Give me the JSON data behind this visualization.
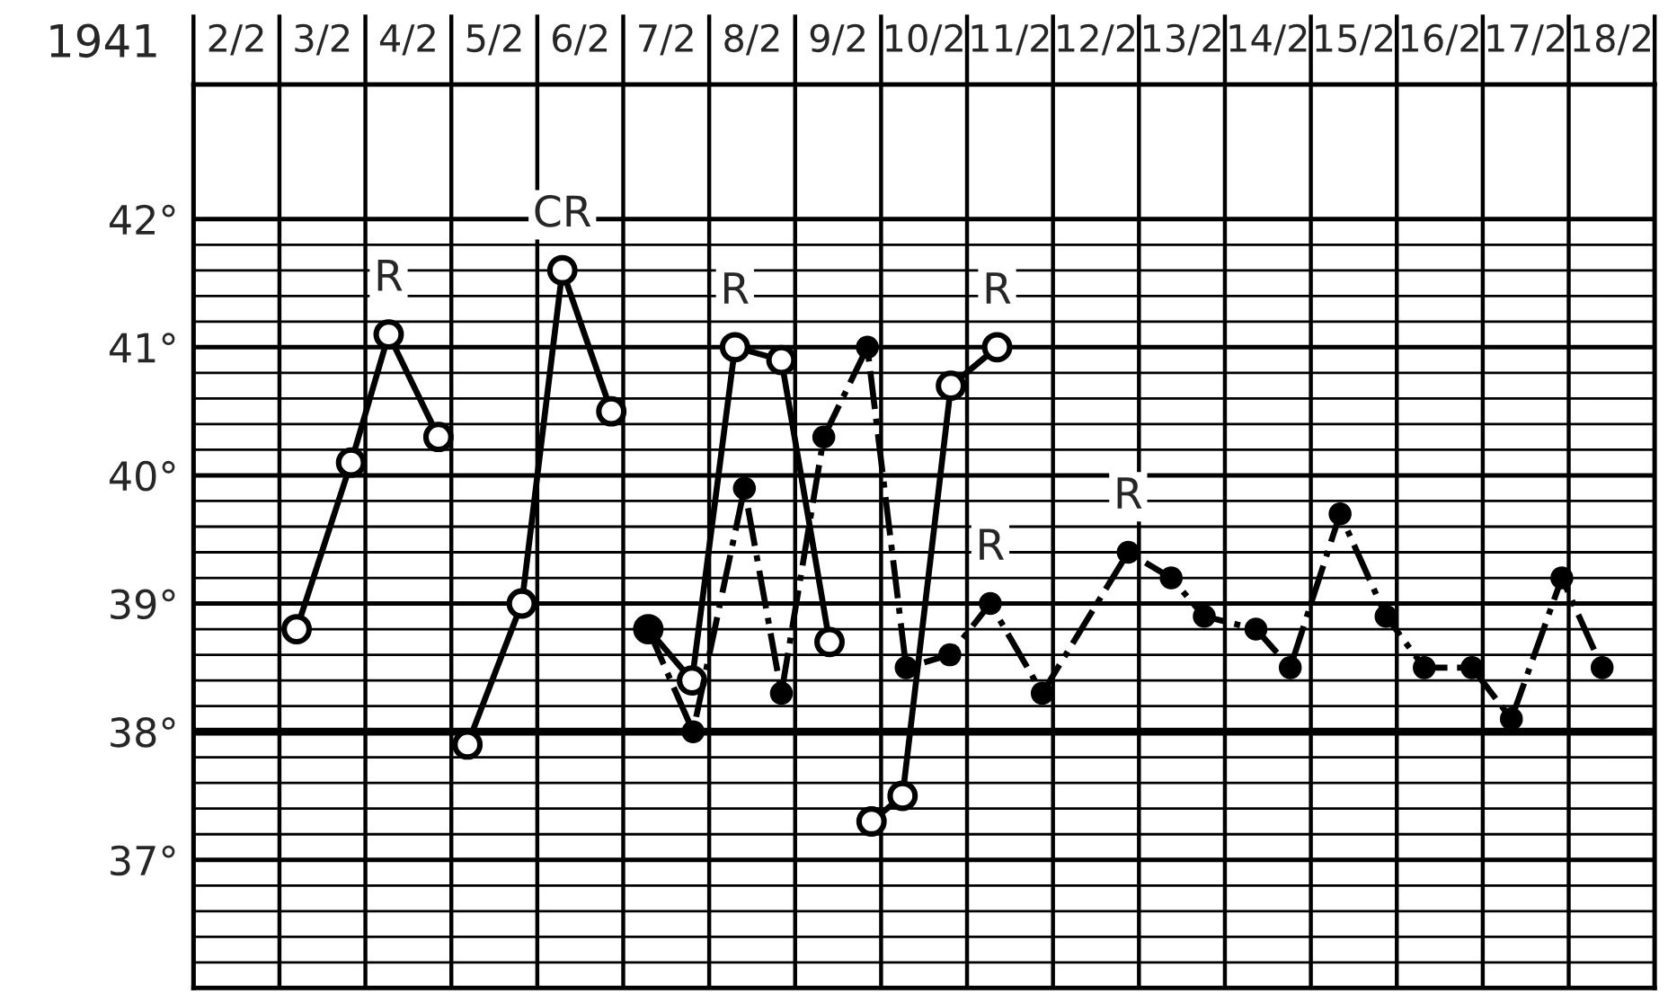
{
  "chart_data": {
    "type": "line",
    "xlabel": "1941",
    "xlim": [
      "1941-02-02",
      "1941-02-19"
    ],
    "xticks": [
      {
        "value": "1941-02-02",
        "label": null
      },
      {
        "value": "1941-02-02T12:00",
        "label": "2/2"
      },
      {
        "value": "1941-02-03",
        "label": null
      },
      {
        "value": "1941-02-03T12:00",
        "label": "3/2"
      },
      {
        "value": "1941-02-04",
        "label": null
      },
      {
        "value": "1941-02-04T12:00",
        "label": "4/2"
      },
      {
        "value": "1941-02-05",
        "label": null
      },
      {
        "value": "1941-02-05T12:00",
        "label": "5/2"
      },
      {
        "value": "1941-02-06",
        "label": null
      },
      {
        "value": "1941-02-06T12:00",
        "label": "6/2"
      },
      {
        "value": "1941-02-07",
        "label": null
      },
      {
        "value": "1941-02-07T12:00",
        "label": "7/2"
      },
      {
        "value": "1941-02-08",
        "label": null
      },
      {
        "value": "1941-02-08T12:00",
        "label": "8/2"
      },
      {
        "value": "1941-02-09",
        "label": null
      },
      {
        "value": "1941-02-09T12:00",
        "label": "9/2"
      },
      {
        "value": "1941-02-10",
        "label": null
      },
      {
        "value": "1941-02-10T12:00",
        "label": "10/2"
      },
      {
        "value": "1941-02-11",
        "label": null
      },
      {
        "value": "1941-02-11T12:00",
        "label": "11/2"
      },
      {
        "value": "1941-02-12",
        "label": null
      },
      {
        "value": "1941-02-12T12:00",
        "label": "12/2"
      },
      {
        "value": "1941-02-13",
        "label": null
      },
      {
        "value": "1941-02-13T12:00",
        "label": "13/2"
      },
      {
        "value": "1941-02-14",
        "label": null
      },
      {
        "value": "1941-02-14T12:00",
        "label": "14/2"
      },
      {
        "value": "1941-02-15",
        "label": null
      },
      {
        "value": "1941-02-15T12:00",
        "label": "15/2"
      },
      {
        "value": "1941-02-16",
        "label": null
      },
      {
        "value": "1941-02-16T12:00",
        "label": "16/2"
      },
      {
        "value": "1941-02-17",
        "label": null
      },
      {
        "value": "1941-02-17T12:00",
        "label": "17/2"
      },
      {
        "value": "1941-02-18",
        "label": null
      },
      {
        "value": "1941-02-18T12:00",
        "label": "18/2"
      },
      {
        "value": "1941-02-19",
        "label": null
      }
    ],
    "ylim": [
      36,
      43.05
    ],
    "yticks": [
      {
        "value": 36.2,
        "label": null
      },
      {
        "value": 36.4,
        "label": null
      },
      {
        "value": 36.6,
        "label": null
      },
      {
        "value": 36.8,
        "label": null
      },
      {
        "value": 37,
        "label": "37°"
      },
      {
        "value": 37.2,
        "label": null
      },
      {
        "value": 37.4,
        "label": null
      },
      {
        "value": 37.6,
        "label": null
      },
      {
        "value": 37.8,
        "label": null
      },
      {
        "value": 38,
        "label": "38°"
      },
      {
        "value": 38.2,
        "label": null
      },
      {
        "value": 38.4,
        "label": null
      },
      {
        "value": 38.6,
        "label": null
      },
      {
        "value": 38.8,
        "label": null
      },
      {
        "value": 39,
        "label": "39°"
      },
      {
        "value": 39.2,
        "label": null
      },
      {
        "value": 39.4,
        "label": null
      },
      {
        "value": 39.6,
        "label": null
      },
      {
        "value": 39.8,
        "label": null
      },
      {
        "value": 40,
        "label": "40°"
      },
      {
        "value": 40.2,
        "label": null
      },
      {
        "value": 40.4,
        "label": null
      },
      {
        "value": 40.6,
        "label": null
      },
      {
        "value": 40.8,
        "label": null
      },
      {
        "value": 41,
        "label": "41°"
      },
      {
        "value": 41.2,
        "label": null
      },
      {
        "value": 41.4,
        "label": null
      },
      {
        "value": 41.6,
        "label": null
      },
      {
        "value": 41.8,
        "label": null
      },
      {
        "value": 42,
        "label": "42°"
      }
    ],
    "grid": true,
    "marker": "circle",
    "ref_lines": [
      {
        "axis": "y",
        "value": 38,
        "label": null,
        "color": "#000000"
      }
    ],
    "series": [
      {
        "color": "#000000",
        "line_style": "solid",
        "x": [
          "1941-02-03T04:48",
          "1941-02-03T20:00",
          "1941-02-04T06:30",
          "1941-02-04T20:24",
          "1941-02-05T00:00",
          "1941-02-05T04:30",
          "1941-02-05T19:40",
          "1941-02-06T07:00",
          "1941-02-06T20:40",
          "1941-02-07T00:00",
          "1941-02-07T07:00",
          "1941-02-07T19:12",
          "1941-02-08T07:12",
          "1941-02-08T20:10",
          "1941-02-09T09:36",
          "1941-02-09T14:24",
          "1941-02-09T21:20",
          "1941-02-10T06:00",
          "1941-02-10T19:30",
          "1941-02-11T08:24"
        ],
        "values": [
          38.8,
          40.1,
          41.1,
          40.3,
          null,
          37.9,
          39.0,
          41.6,
          40.5,
          null,
          38.8,
          38.4,
          41.0,
          40.9,
          38.7,
          null,
          37.3,
          37.5,
          40.7,
          41.0
        ]
      },
      {
        "color": "#000000",
        "line_style": "dashdot",
        "x": [
          "1941-02-07T07:00",
          "1941-02-07T19:30",
          "1941-02-08T09:50",
          "1941-02-08T20:10",
          "1941-02-09T08:00",
          "1941-02-09T20:10",
          "1941-02-10T07:00",
          "1941-02-10T19:12",
          "1941-02-11T06:30",
          "1941-02-11T21:00",
          "1941-02-12T21:00",
          "1941-02-13T09:00",
          "1941-02-13T18:15",
          "1941-02-14T08:40",
          "1941-02-14T18:15",
          "1941-02-15T08:10",
          "1941-02-15T21:00",
          "1941-02-16T07:40",
          "1941-02-16T21:00",
          "1941-02-17T08:00",
          "1941-02-17T22:05",
          "1941-02-18T09:20"
        ],
        "values": [
          38.8,
          38.0,
          39.9,
          38.3,
          40.3,
          41.0,
          38.5,
          38.6,
          39.0,
          38.3,
          39.4,
          39.2,
          38.9,
          38.8,
          38.5,
          39.7,
          38.9,
          38.5,
          38.5,
          38.1,
          39.2,
          38.5
        ]
      }
    ],
    "annotations": [
      {
        "text": "R",
        "x": "1941-02-04T06:30",
        "y": 41.1
      },
      {
        "text": "CR",
        "x": "1941-02-06T07:00",
        "y": 41.6
      },
      {
        "text": "R",
        "x": "1941-02-08T07:12",
        "y": 41.0
      },
      {
        "text": "R",
        "x": "1941-02-11T08:24",
        "y": 41.0
      },
      {
        "text": "R",
        "x": "1941-02-11T06:30",
        "y": 39.0
      },
      {
        "text": "R",
        "x": "1941-02-12T21:00",
        "y": 39.4
      }
    ]
  }
}
